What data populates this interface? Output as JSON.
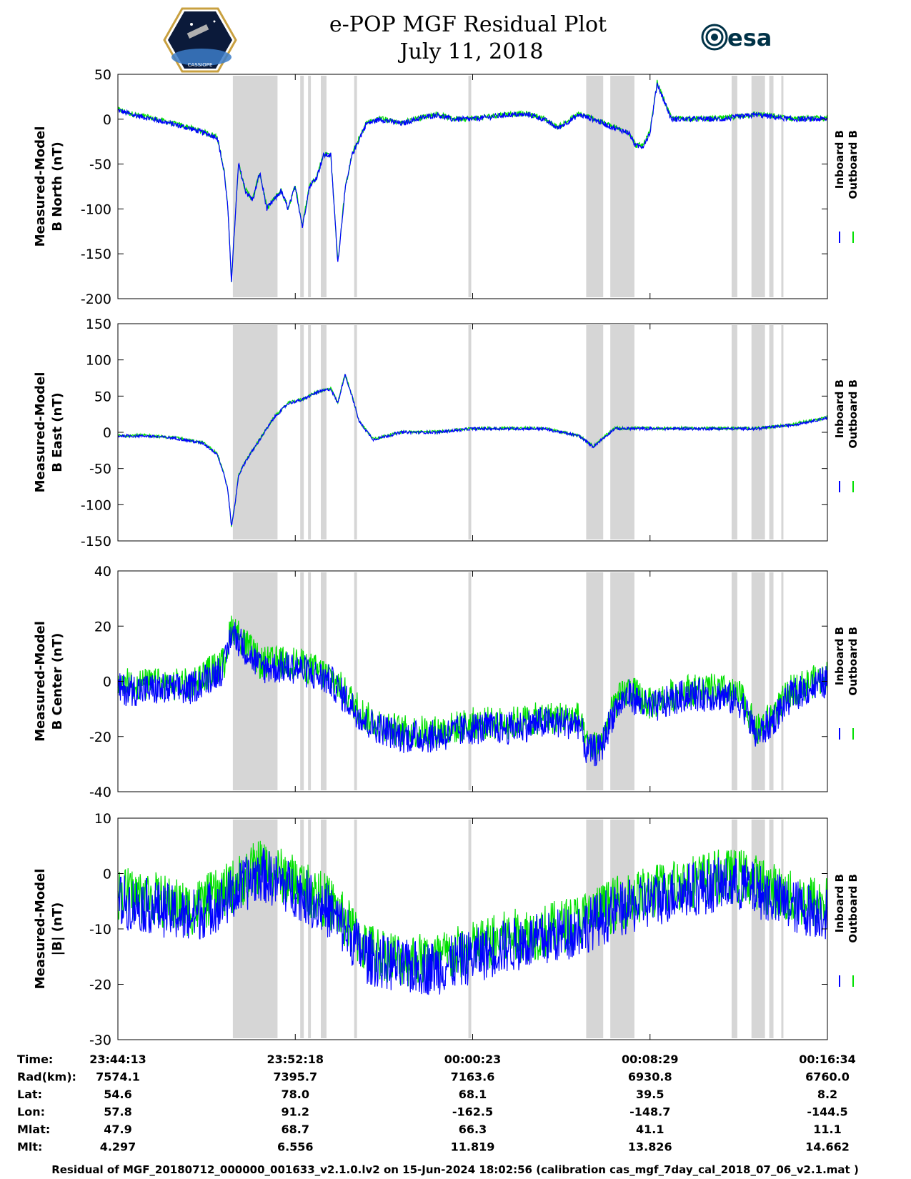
{
  "title_line1": "e-POP MGF Residual Plot",
  "title_line2": "July 11, 2018",
  "logo_left": "CASSIOPE",
  "logo_right": "esa",
  "colors": {
    "inboard": "#0000ff",
    "outboard": "#00e000",
    "shade": "#d6d6d6"
  },
  "legend": {
    "inboard": "Inboard B",
    "outboard": "Outboard B"
  },
  "chart_data": [
    {
      "type": "line",
      "ylabel_line1": "Measured-Model",
      "ylabel_line2": "B North (nT)",
      "ylim": [
        -200,
        50
      ],
      "yticks": [
        50,
        0,
        -50,
        -100,
        -150,
        -200
      ],
      "approx_trace": {
        "x": [
          0,
          0.02,
          0.05,
          0.1,
          0.14,
          0.15,
          0.155,
          0.16,
          0.17,
          0.18,
          0.19,
          0.2,
          0.21,
          0.22,
          0.23,
          0.24,
          0.25,
          0.26,
          0.27,
          0.28,
          0.29,
          0.3,
          0.31,
          0.32,
          0.33,
          0.35,
          0.37,
          0.4,
          0.42,
          0.45,
          0.47,
          0.5,
          0.55,
          0.58,
          0.6,
          0.62,
          0.65,
          0.67,
          0.7,
          0.72,
          0.73,
          0.74,
          0.75,
          0.76,
          0.78,
          0.8,
          0.85,
          0.9,
          0.95,
          1.0
        ],
        "y": [
          10,
          5,
          0,
          -10,
          -20,
          -60,
          -100,
          -180,
          -50,
          -80,
          -90,
          -60,
          -100,
          -90,
          -80,
          -100,
          -75,
          -120,
          -75,
          -65,
          -40,
          -40,
          -160,
          -80,
          -40,
          -5,
          0,
          -5,
          0,
          5,
          0,
          0,
          5,
          5,
          0,
          -10,
          5,
          0,
          -10,
          -15,
          -30,
          -30,
          -15,
          40,
          0,
          0,
          0,
          5,
          0,
          0
        ]
      },
      "shaded_x": [
        [
          0.162,
          0.225
        ],
        [
          0.257,
          0.262
        ],
        [
          0.268,
          0.272
        ],
        [
          0.286,
          0.294
        ],
        [
          0.333,
          0.337
        ],
        [
          0.494,
          0.498
        ],
        [
          0.66,
          0.684
        ],
        [
          0.694,
          0.728
        ],
        [
          0.865,
          0.873
        ],
        [
          0.893,
          0.912
        ],
        [
          0.918,
          0.924
        ],
        [
          0.935,
          0.938
        ]
      ]
    },
    {
      "type": "line",
      "ylabel_line1": "Measured-Model",
      "ylabel_line2": "B East (nT)",
      "ylim": [
        -150,
        150
      ],
      "yticks": [
        150,
        100,
        50,
        0,
        -50,
        -100,
        -150
      ],
      "approx_trace": {
        "x": [
          0,
          0.04,
          0.08,
          0.12,
          0.14,
          0.15,
          0.155,
          0.16,
          0.165,
          0.17,
          0.18,
          0.2,
          0.22,
          0.24,
          0.26,
          0.28,
          0.3,
          0.31,
          0.32,
          0.33,
          0.34,
          0.36,
          0.4,
          0.45,
          0.5,
          0.55,
          0.6,
          0.65,
          0.67,
          0.7,
          0.75,
          0.8,
          0.85,
          0.9,
          0.95,
          1.0
        ],
        "y": [
          -5,
          -5,
          -8,
          -15,
          -30,
          -60,
          -80,
          -130,
          -100,
          -60,
          -40,
          -10,
          20,
          40,
          45,
          55,
          60,
          40,
          80,
          50,
          15,
          -10,
          0,
          0,
          5,
          5,
          5,
          -5,
          -20,
          5,
          5,
          5,
          5,
          5,
          10,
          20
        ]
      },
      "shaded_x": [
        [
          0.162,
          0.225
        ],
        [
          0.257,
          0.262
        ],
        [
          0.268,
          0.272
        ],
        [
          0.286,
          0.294
        ],
        [
          0.333,
          0.337
        ],
        [
          0.494,
          0.498
        ],
        [
          0.66,
          0.684
        ],
        [
          0.694,
          0.728
        ],
        [
          0.865,
          0.873
        ],
        [
          0.893,
          0.912
        ],
        [
          0.918,
          0.924
        ],
        [
          0.935,
          0.938
        ]
      ]
    },
    {
      "type": "line",
      "ylabel_line1": "Measured-Model",
      "ylabel_line2": "B Center (nT)",
      "ylim": [
        -40,
        40
      ],
      "yticks": [
        40,
        20,
        0,
        -20,
        -40
      ],
      "approx_trace": {
        "x": [
          0,
          0.05,
          0.1,
          0.15,
          0.16,
          0.17,
          0.2,
          0.25,
          0.3,
          0.35,
          0.4,
          0.45,
          0.5,
          0.55,
          0.6,
          0.65,
          0.66,
          0.68,
          0.7,
          0.72,
          0.75,
          0.8,
          0.85,
          0.88,
          0.9,
          0.92,
          0.95,
          1.0
        ],
        "y": [
          -3,
          -3,
          -3,
          5,
          18,
          15,
          5,
          5,
          0,
          -15,
          -20,
          -20,
          -17,
          -17,
          -15,
          -15,
          -25,
          -25,
          -10,
          -5,
          -10,
          -5,
          -5,
          -8,
          -20,
          -15,
          -5,
          0
        ]
      },
      "shaded_x": [
        [
          0.162,
          0.225
        ],
        [
          0.257,
          0.262
        ],
        [
          0.268,
          0.272
        ],
        [
          0.286,
          0.294
        ],
        [
          0.333,
          0.337
        ],
        [
          0.494,
          0.498
        ],
        [
          0.66,
          0.684
        ],
        [
          0.694,
          0.728
        ],
        [
          0.865,
          0.873
        ],
        [
          0.893,
          0.912
        ],
        [
          0.918,
          0.924
        ],
        [
          0.935,
          0.938
        ]
      ]
    },
    {
      "type": "line",
      "ylabel_line1": "Measured-Model",
      "ylabel_line2": "|B| (nT)",
      "ylim": [
        -30,
        10
      ],
      "yticks": [
        10,
        0,
        -10,
        -20,
        -30
      ],
      "approx_trace": {
        "x": [
          0,
          0.05,
          0.1,
          0.15,
          0.2,
          0.25,
          0.3,
          0.35,
          0.4,
          0.45,
          0.5,
          0.55,
          0.6,
          0.65,
          0.7,
          0.75,
          0.8,
          0.85,
          0.88,
          0.9,
          0.95,
          1.0
        ],
        "y": [
          -5,
          -6,
          -8,
          -5,
          0,
          -3,
          -7,
          -15,
          -17,
          -17,
          -15,
          -13,
          -12,
          -10,
          -7,
          -5,
          -3,
          -2,
          -2,
          -3,
          -6,
          -7
        ]
      },
      "shaded_x": [
        [
          0.162,
          0.225
        ],
        [
          0.257,
          0.262
        ],
        [
          0.268,
          0.272
        ],
        [
          0.286,
          0.294
        ],
        [
          0.333,
          0.337
        ],
        [
          0.494,
          0.498
        ],
        [
          0.66,
          0.684
        ],
        [
          0.694,
          0.728
        ],
        [
          0.865,
          0.873
        ],
        [
          0.893,
          0.912
        ],
        [
          0.918,
          0.924
        ],
        [
          0.935,
          0.938
        ]
      ]
    }
  ],
  "orbit_table": {
    "row_labels": [
      "Time:",
      "Rad(km):",
      "Lat:",
      "Lon:",
      "Mlat:",
      "Mlt:"
    ],
    "columns": [
      [
        "23:44:13",
        "7574.1",
        "54.6",
        "57.8",
        "47.9",
        "4.297"
      ],
      [
        "23:52:18",
        "7395.7",
        "78.0",
        "91.2",
        "68.7",
        "6.556"
      ],
      [
        "00:00:23",
        "7163.6",
        "68.1",
        "-162.5",
        "66.3",
        "11.819"
      ],
      [
        "00:08:29",
        "6930.8",
        "39.5",
        "-148.7",
        "41.1",
        "13.826"
      ],
      [
        "00:16:34",
        "6760.0",
        "8.2",
        "-144.5",
        "11.1",
        "14.662"
      ]
    ]
  },
  "footer": "Residual of MGF_20180712_000000_001633_v2.1.0.lv2 on 15-Jun-2024 18:02:56 (calibration cas_mgf_7day_cal_2018_07_06_v2.1.mat )"
}
